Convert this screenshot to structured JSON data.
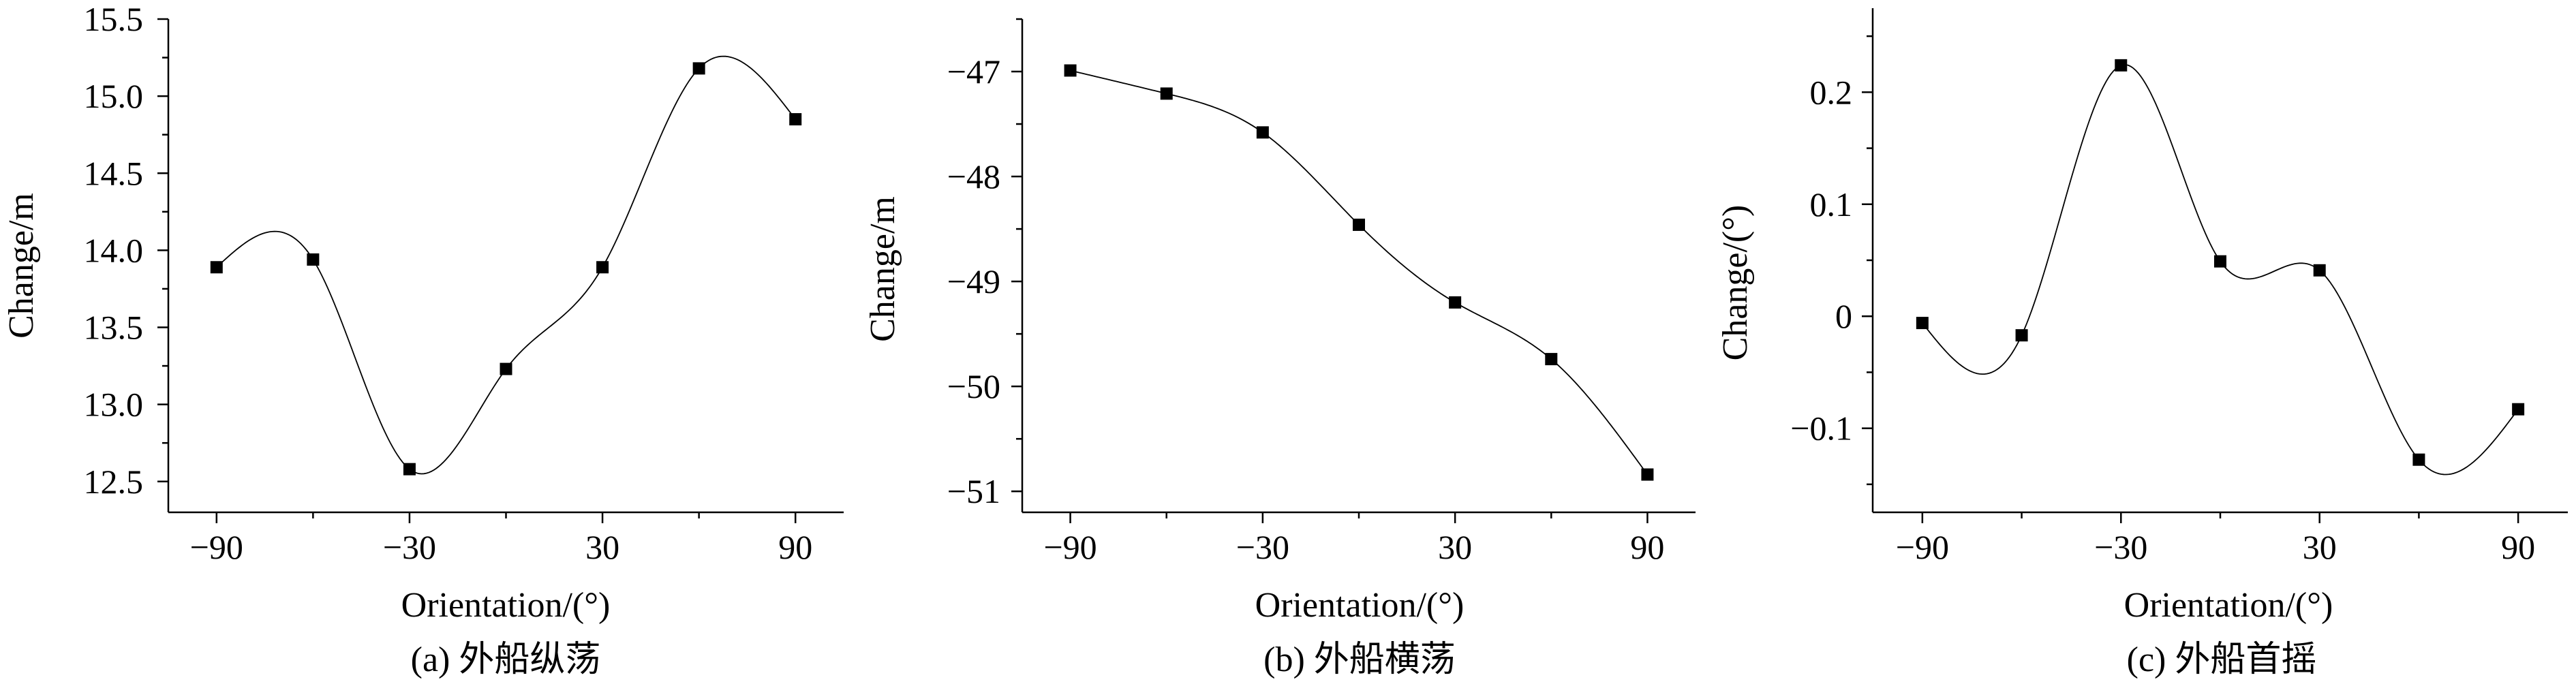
{
  "chart_data": [
    {
      "type": "line",
      "smooth": true,
      "marker": "square",
      "color": "#000000",
      "caption": "(a) 外船纵荡",
      "xlabel": "Orientation/(°)",
      "ylabel": "Change/m",
      "xlim": [
        -105,
        105
      ],
      "ylim": [
        12.3,
        15.5
      ],
      "xticks": [
        -90,
        -30,
        30,
        90
      ],
      "xtick_labels": [
        "−90",
        "−30",
        "30",
        "90"
      ],
      "xminor": [
        -60,
        0,
        60
      ],
      "yticks": [
        12.5,
        13.0,
        13.5,
        14.0,
        14.5,
        15.0,
        15.5
      ],
      "ytick_labels": [
        "12.5",
        "13.0",
        "13.5",
        "14.0",
        "14.5",
        "15.0",
        "15.5"
      ],
      "yminor": [
        12.75,
        13.25,
        13.75,
        14.25,
        14.75,
        15.25
      ],
      "x": [
        -90,
        -60,
        -30,
        0,
        30,
        60,
        90
      ],
      "y": [
        13.89,
        13.94,
        12.58,
        13.23,
        13.89,
        15.18,
        14.85
      ]
    },
    {
      "type": "line",
      "smooth": true,
      "marker": "square",
      "color": "#000000",
      "caption": "(b) 外船横荡",
      "xlabel": "Orientation/(°)",
      "ylabel": "Change/m",
      "xlim": [
        -105,
        105
      ],
      "ylim": [
        -51.2,
        -46.5
      ],
      "xticks": [
        -90,
        -30,
        30,
        90
      ],
      "xtick_labels": [
        "−90",
        "−30",
        "30",
        "90"
      ],
      "xminor": [
        -60,
        0,
        60
      ],
      "yticks": [
        -51,
        -50,
        -49,
        -48,
        -47
      ],
      "ytick_labels": [
        "−51",
        "−50",
        "−49",
        "−48",
        "−47"
      ],
      "yminor": [
        -50.5,
        -49.5,
        -48.5,
        -47.5,
        -46.5
      ],
      "x": [
        -90,
        -60,
        -30,
        0,
        30,
        60,
        90
      ],
      "y": [
        -46.99,
        -47.21,
        -47.58,
        -48.46,
        -49.2,
        -49.74,
        -50.84
      ]
    },
    {
      "type": "line",
      "smooth": true,
      "marker": "square",
      "color": "#000000",
      "caption": "(c) 外船首摇",
      "xlabel": "Orientation/(°)",
      "ylabel": "Change/(°)",
      "xlim": [
        -105,
        105
      ],
      "ylim": [
        -0.175,
        0.275
      ],
      "xticks": [
        -90,
        -30,
        30,
        90
      ],
      "xtick_labels": [
        "−90",
        "−30",
        "30",
        "90"
      ],
      "xminor": [
        -60,
        0,
        60
      ],
      "yticks": [
        -0.1,
        0,
        0.1,
        0.2
      ],
      "ytick_labels": [
        "−0.1",
        "0",
        "0.1",
        "0.2"
      ],
      "yminor": [
        -0.15,
        -0.05,
        0.05,
        0.15,
        0.25
      ],
      "x": [
        -90,
        -60,
        -30,
        0,
        30,
        60,
        90
      ],
      "y": [
        -0.006,
        -0.017,
        0.224,
        0.049,
        0.041,
        -0.128,
        -0.083
      ]
    }
  ]
}
